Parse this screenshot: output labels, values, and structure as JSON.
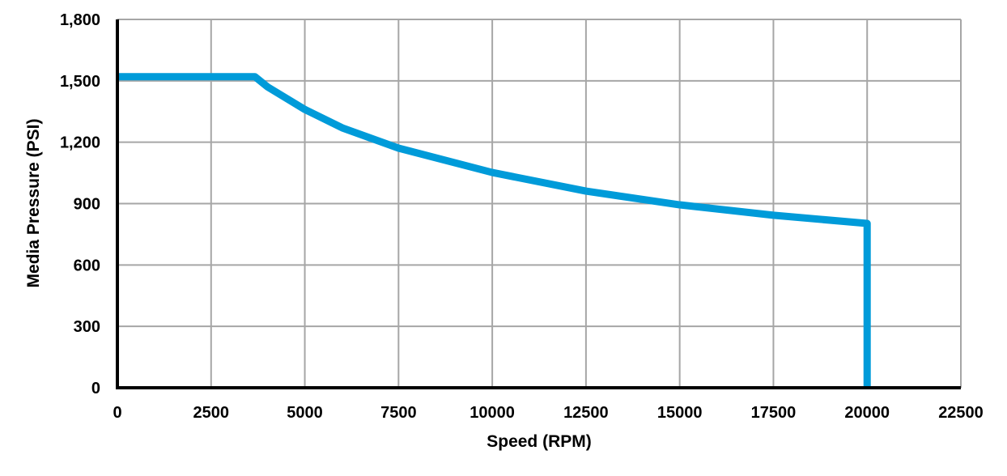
{
  "chart_data": {
    "type": "line",
    "title": "",
    "xlabel": "Speed (RPM)",
    "ylabel": "Media Pressure (PSI)",
    "xlim": [
      0,
      22500
    ],
    "ylim": [
      0,
      1800
    ],
    "xticks": [
      0,
      2500,
      5000,
      7500,
      10000,
      12500,
      15000,
      17500,
      20000,
      22500
    ],
    "xtick_labels": [
      "0",
      "2500",
      "5000",
      "7500",
      "10000",
      "12500",
      "15000",
      "17500",
      "20000",
      "22500"
    ],
    "yticks": [
      0,
      300,
      600,
      900,
      1200,
      1500,
      1800
    ],
    "ytick_labels": [
      "0",
      "300",
      "600",
      "900",
      "1,200",
      "1,500",
      "1,800"
    ],
    "grid": true,
    "legend": "none",
    "series": [
      {
        "color": "#009BD9",
        "x": [
          0,
          3670,
          4000,
          5000,
          6000,
          7500,
          10000,
          12500,
          15000,
          17500,
          20000,
          20000
        ],
        "y": [
          1520,
          1520,
          1471,
          1360,
          1270,
          1171,
          1052,
          961,
          894,
          843,
          803,
          0
        ]
      }
    ],
    "colors": {
      "line": "#009BD9",
      "grid": "#A6A6A6",
      "axis": "#000000"
    }
  }
}
